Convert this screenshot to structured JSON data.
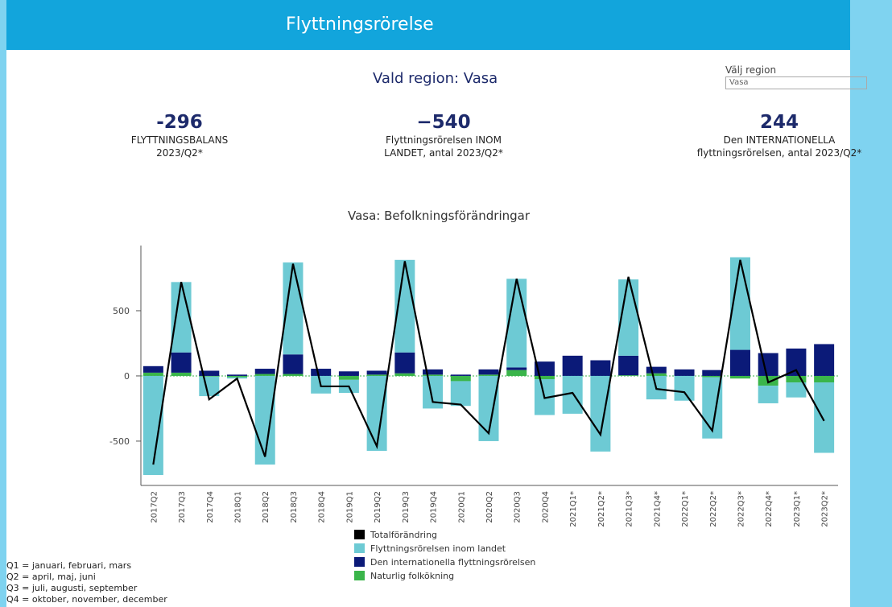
{
  "header": {
    "title": "Flyttningsrörelse"
  },
  "region": {
    "label": "Vald region:  Vasa",
    "select_label": "Välj region",
    "select_value": "Vasa"
  },
  "kpis": [
    {
      "value": "-296",
      "lines": [
        "FLYTTNINGSBALANS",
        "2023/Q2*"
      ]
    },
    {
      "value": "−540",
      "lines": [
        "Flyttningsrörelsen INOM",
        "LANDET, antal  2023/Q2*"
      ]
    },
    {
      "value": "244",
      "lines": [
        "Den INTERNATIONELLA",
        "flyttningsrörelsen, antal 2023/Q2*"
      ]
    }
  ],
  "chart_data": {
    "type": "bar",
    "title": "Vasa: Befolkningsförändringar",
    "categories": [
      "2017Q2",
      "2017Q3",
      "2017Q4",
      "2018Q1",
      "2018Q2",
      "2018Q3",
      "2018Q4",
      "2019Q1",
      "2019Q2",
      "2019Q3",
      "2019Q4",
      "2020Q1",
      "2020Q2",
      "2020Q3",
      "2020Q4",
      "2021Q1*",
      "2021Q2*",
      "2021Q3*",
      "2021Q4*",
      "2022Q1*",
      "2022Q2*",
      "2022Q3*",
      "2022Q4*",
      "2023Q1*",
      "2023Q2*"
    ],
    "series": [
      {
        "name": "Totalförändring",
        "type": "line",
        "color": "#000000",
        "values": [
          -680,
          720,
          -180,
          -20,
          -620,
          860,
          -80,
          -80,
          -540,
          880,
          -200,
          -220,
          -440,
          745,
          -170,
          -130,
          -450,
          760,
          -100,
          -125,
          -420,
          890,
          -50,
          45,
          -345
        ]
      },
      {
        "name": "Flyttningsrörelsen inom landet",
        "color": "#6dcad4",
        "values": [
          -760,
          540,
          -150,
          -10,
          -680,
          705,
          -135,
          -100,
          -575,
          710,
          -250,
          -190,
          -500,
          680,
          -275,
          -290,
          -580,
          585,
          -180,
          -190,
          -470,
          710,
          -135,
          -115,
          -540
        ]
      },
      {
        "name": "Den internationella flyttningsrörelsen",
        "color": "#0b1a78",
        "values": [
          50,
          155,
          40,
          10,
          40,
          150,
          55,
          35,
          30,
          160,
          40,
          10,
          40,
          20,
          110,
          155,
          120,
          150,
          50,
          50,
          45,
          200,
          175,
          210,
          244
        ]
      },
      {
        "name": "Naturlig folkökning",
        "color": "#3ab54a",
        "values": [
          25,
          25,
          -5,
          -10,
          15,
          15,
          0,
          -30,
          10,
          20,
          10,
          -40,
          10,
          45,
          -25,
          0,
          0,
          5,
          20,
          0,
          -10,
          -20,
          -75,
          -50,
          -50
        ]
      }
    ],
    "ylim": [
      -840,
      1000
    ],
    "yticks": [
      -500,
      0,
      500
    ]
  },
  "notes": [
    "Q1 = januari, februari, mars",
    "Q2 = april, maj, juni",
    "Q3 = juli, augusti, september",
    "Q4 = oktober, november, december"
  ]
}
